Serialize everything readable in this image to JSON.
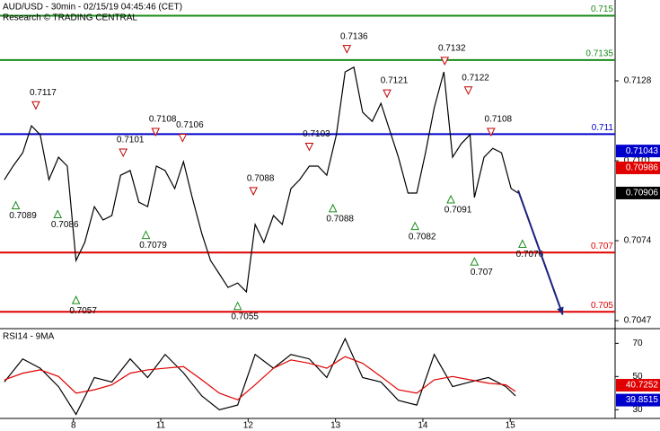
{
  "chart_data": [
    {
      "type": "line",
      "title": "AUD/USD - 30min - 02/15/19 04:45:46 (CET)",
      "subtitle": "Research © TRADING CENTRAL",
      "xlim": [
        -0.84,
        6.2
      ],
      "xticks": [
        {
          "value": 0,
          "label": "8"
        },
        {
          "value": 1,
          "label": "11"
        },
        {
          "value": 2,
          "label": "12"
        },
        {
          "value": 3,
          "label": "13"
        },
        {
          "value": 4,
          "label": "14"
        },
        {
          "value": 5,
          "label": "15"
        }
      ],
      "ylim": [
        0.70446,
        0.71553
      ],
      "yticks": [
        0.7128,
        0.7101,
        0.7074,
        0.7047
      ],
      "x": [
        -0.79,
        -0.69,
        -0.58,
        -0.48,
        -0.38,
        -0.28,
        -0.17,
        -0.07,
        0.03,
        0.13,
        0.24,
        0.34,
        0.44,
        0.54,
        0.65,
        0.75,
        0.85,
        0.95,
        1.05,
        1.16,
        1.26,
        1.36,
        1.47,
        1.57,
        1.67,
        1.77,
        1.88,
        1.98,
        2.08,
        2.18,
        2.29,
        2.39,
        2.49,
        2.59,
        2.7,
        2.8,
        2.9,
        3.01,
        3.11,
        3.21,
        3.31,
        3.42,
        3.52,
        3.62,
        3.72,
        3.83,
        3.93,
        4.03,
        4.13,
        4.24,
        4.34,
        4.44,
        4.54,
        4.59,
        4.7,
        4.8,
        4.9,
        5.01,
        5.09
      ],
      "series": [
        {
          "color": "#000000",
          "values": [
            0.70946,
            0.70992,
            0.71037,
            0.71128,
            0.71098,
            0.70946,
            0.71022,
            0.70992,
            0.70673,
            0.70734,
            0.70855,
            0.7081,
            0.70825,
            0.70961,
            0.70977,
            0.7087,
            0.70855,
            0.70992,
            0.70977,
            0.70916,
            0.71007,
            0.70886,
            0.70764,
            0.70673,
            0.70628,
            0.70582,
            0.70597,
            0.70567,
            0.70795,
            0.70734,
            0.70825,
            0.70795,
            0.70916,
            0.70946,
            0.70992,
            0.70992,
            0.70961,
            0.71098,
            0.7131,
            0.71326,
            0.71174,
            0.71143,
            0.71204,
            0.71113,
            0.71022,
            0.70901,
            0.70901,
            0.71037,
            0.71189,
            0.7131,
            0.71022,
            0.71068,
            0.71098,
            0.70886,
            0.71022,
            0.71052,
            0.71037,
            0.70916,
            0.70901
          ]
        }
      ],
      "levels": [
        {
          "value": 0.715,
          "color": "#1a8c1a"
        },
        {
          "value": 0.7135,
          "color": "#1a8c1a"
        },
        {
          "value": 0.711,
          "color": "#0000cc"
        },
        {
          "value": 0.707,
          "color": "#e00000"
        },
        {
          "value": 0.705,
          "color": "#e00000"
        }
      ],
      "price_tags": [
        {
          "value": 0.71043,
          "color": "#0000cc"
        },
        {
          "value": 0.70986,
          "color": "#e00000"
        },
        {
          "value": 0.70906,
          "color": "#000000"
        }
      ],
      "annotations": [
        {
          "x": -0.43,
          "value": 0.7117,
          "direction": "down"
        },
        {
          "x": 0.57,
          "value": 0.7101,
          "direction": "down"
        },
        {
          "x": 0.94,
          "value": 0.7108,
          "direction": "down"
        },
        {
          "x": 1.25,
          "value": 0.7106,
          "direction": "down"
        },
        {
          "x": 2.06,
          "value": 0.7088,
          "direction": "down"
        },
        {
          "x": 2.7,
          "value": 0.7103,
          "direction": "down"
        },
        {
          "x": 3.13,
          "value": 0.7136,
          "direction": "down"
        },
        {
          "x": 3.59,
          "value": 0.7121,
          "direction": "down"
        },
        {
          "x": 4.25,
          "value": 0.7132,
          "direction": "down"
        },
        {
          "x": 4.52,
          "value": 0.7122,
          "direction": "down"
        },
        {
          "x": 4.78,
          "value": 0.7108,
          "direction": "down"
        },
        {
          "x": -0.66,
          "value": 0.7089,
          "direction": "up"
        },
        {
          "x": -0.18,
          "value": 0.7086,
          "direction": "up"
        },
        {
          "x": 0.03,
          "value": 0.7057,
          "direction": "up"
        },
        {
          "x": 0.83,
          "value": 0.7079,
          "direction": "up"
        },
        {
          "x": 1.88,
          "value": 0.7055,
          "direction": "up"
        },
        {
          "x": 2.97,
          "value": 0.7088,
          "direction": "up"
        },
        {
          "x": 3.91,
          "value": 0.7082,
          "direction": "up"
        },
        {
          "x": 4.32,
          "value": 0.7091,
          "direction": "up"
        },
        {
          "x": 4.59,
          "value": 0.707,
          "direction": "up"
        },
        {
          "x": 5.14,
          "value": 0.7076,
          "direction": "up"
        }
      ],
      "forecast": {
        "color": "#1a237e",
        "x": [
          5.09,
          5.6
        ],
        "values": [
          0.7091,
          0.7049
        ]
      }
    },
    {
      "type": "line",
      "title": "RSI14 - 9MA",
      "xlim": [
        -0.84,
        6.2
      ],
      "ylim": [
        25.3,
        78.3
      ],
      "yticks": [
        70,
        50,
        30
      ],
      "x": [
        -0.79,
        -0.58,
        -0.38,
        -0.17,
        0.03,
        0.24,
        0.44,
        0.65,
        0.85,
        1.05,
        1.26,
        1.47,
        1.67,
        1.88,
        2.08,
        2.29,
        2.49,
        2.7,
        2.9,
        3.11,
        3.31,
        3.52,
        3.72,
        3.93,
        4.13,
        4.34,
        4.54,
        4.75,
        4.95,
        5.06
      ],
      "series": [
        {
          "color": "#000000",
          "values": [
            46.7,
            60.6,
            55,
            43.9,
            27.2,
            49.4,
            46.7,
            60.6,
            49.4,
            63.3,
            52.2,
            38.3,
            30,
            32.8,
            63.3,
            55,
            63.3,
            60.6,
            49.4,
            72.8,
            49.4,
            46.7,
            35.6,
            32.8,
            63.3,
            43.9,
            46.7,
            49.4,
            43.9,
            38.3
          ]
        },
        {
          "color": "#e00000",
          "values": [
            48,
            52,
            54,
            50,
            40,
            42,
            45,
            52,
            54,
            55,
            56,
            48,
            40,
            36,
            45,
            55,
            60,
            58,
            55,
            62,
            58,
            50,
            42,
            40,
            48,
            50,
            48,
            46,
            45,
            41
          ]
        }
      ],
      "price_tags": [
        {
          "value": 40.7252,
          "color": "#e00000"
        },
        {
          "value": 39.8515,
          "color": "#0000cc"
        }
      ]
    }
  ]
}
